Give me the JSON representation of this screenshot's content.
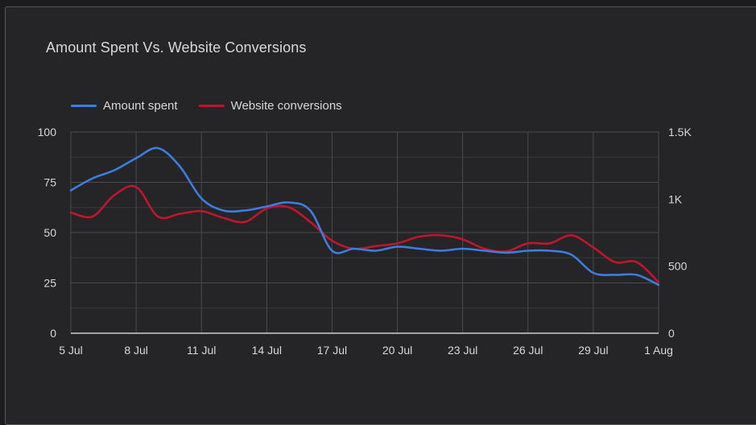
{
  "chart_data": {
    "type": "line",
    "title": "Amount Spent Vs. Website Conversions",
    "x": [
      "5 Jul",
      "6 Jul",
      "7 Jul",
      "8 Jul",
      "9 Jul",
      "10 Jul",
      "11 Jul",
      "12 Jul",
      "13 Jul",
      "14 Jul",
      "15 Jul",
      "16 Jul",
      "17 Jul",
      "18 Jul",
      "19 Jul",
      "20 Jul",
      "21 Jul",
      "22 Jul",
      "23 Jul",
      "24 Jul",
      "25 Jul",
      "26 Jul",
      "27 Jul",
      "28 Jul",
      "29 Jul",
      "30 Jul",
      "31 Jul",
      "1 Aug"
    ],
    "x_tick_labels": [
      "5 Jul",
      "8 Jul",
      "11 Jul",
      "14 Jul",
      "17 Jul",
      "20 Jul",
      "23 Jul",
      "26 Jul",
      "29 Jul",
      "1 Aug"
    ],
    "y_left": {
      "ticks": [
        "0",
        "25",
        "50",
        "75",
        "100"
      ],
      "range": [
        0,
        100
      ]
    },
    "y_right": {
      "ticks": [
        "0",
        "500",
        "1K",
        "1.5K"
      ],
      "range": [
        0,
        1500
      ]
    },
    "grid": true,
    "legend_position": "top-left",
    "series": [
      {
        "name": "Amount spent",
        "axis": "left",
        "color": "#3d7de0",
        "values": [
          71,
          77,
          81,
          87,
          92,
          83,
          67,
          61,
          61,
          63,
          65,
          61,
          41,
          42,
          41,
          43,
          42,
          41,
          42,
          41,
          40,
          41,
          41,
          39,
          30,
          29,
          29,
          24
        ]
      },
      {
        "name": "Website conversions",
        "axis": "right",
        "color": "#c0162d",
        "values": [
          900,
          870,
          1030,
          1090,
          870,
          890,
          910,
          860,
          830,
          930,
          940,
          830,
          690,
          630,
          650,
          670,
          720,
          730,
          700,
          630,
          610,
          670,
          670,
          730,
          640,
          530,
          530,
          380
        ]
      }
    ]
  }
}
